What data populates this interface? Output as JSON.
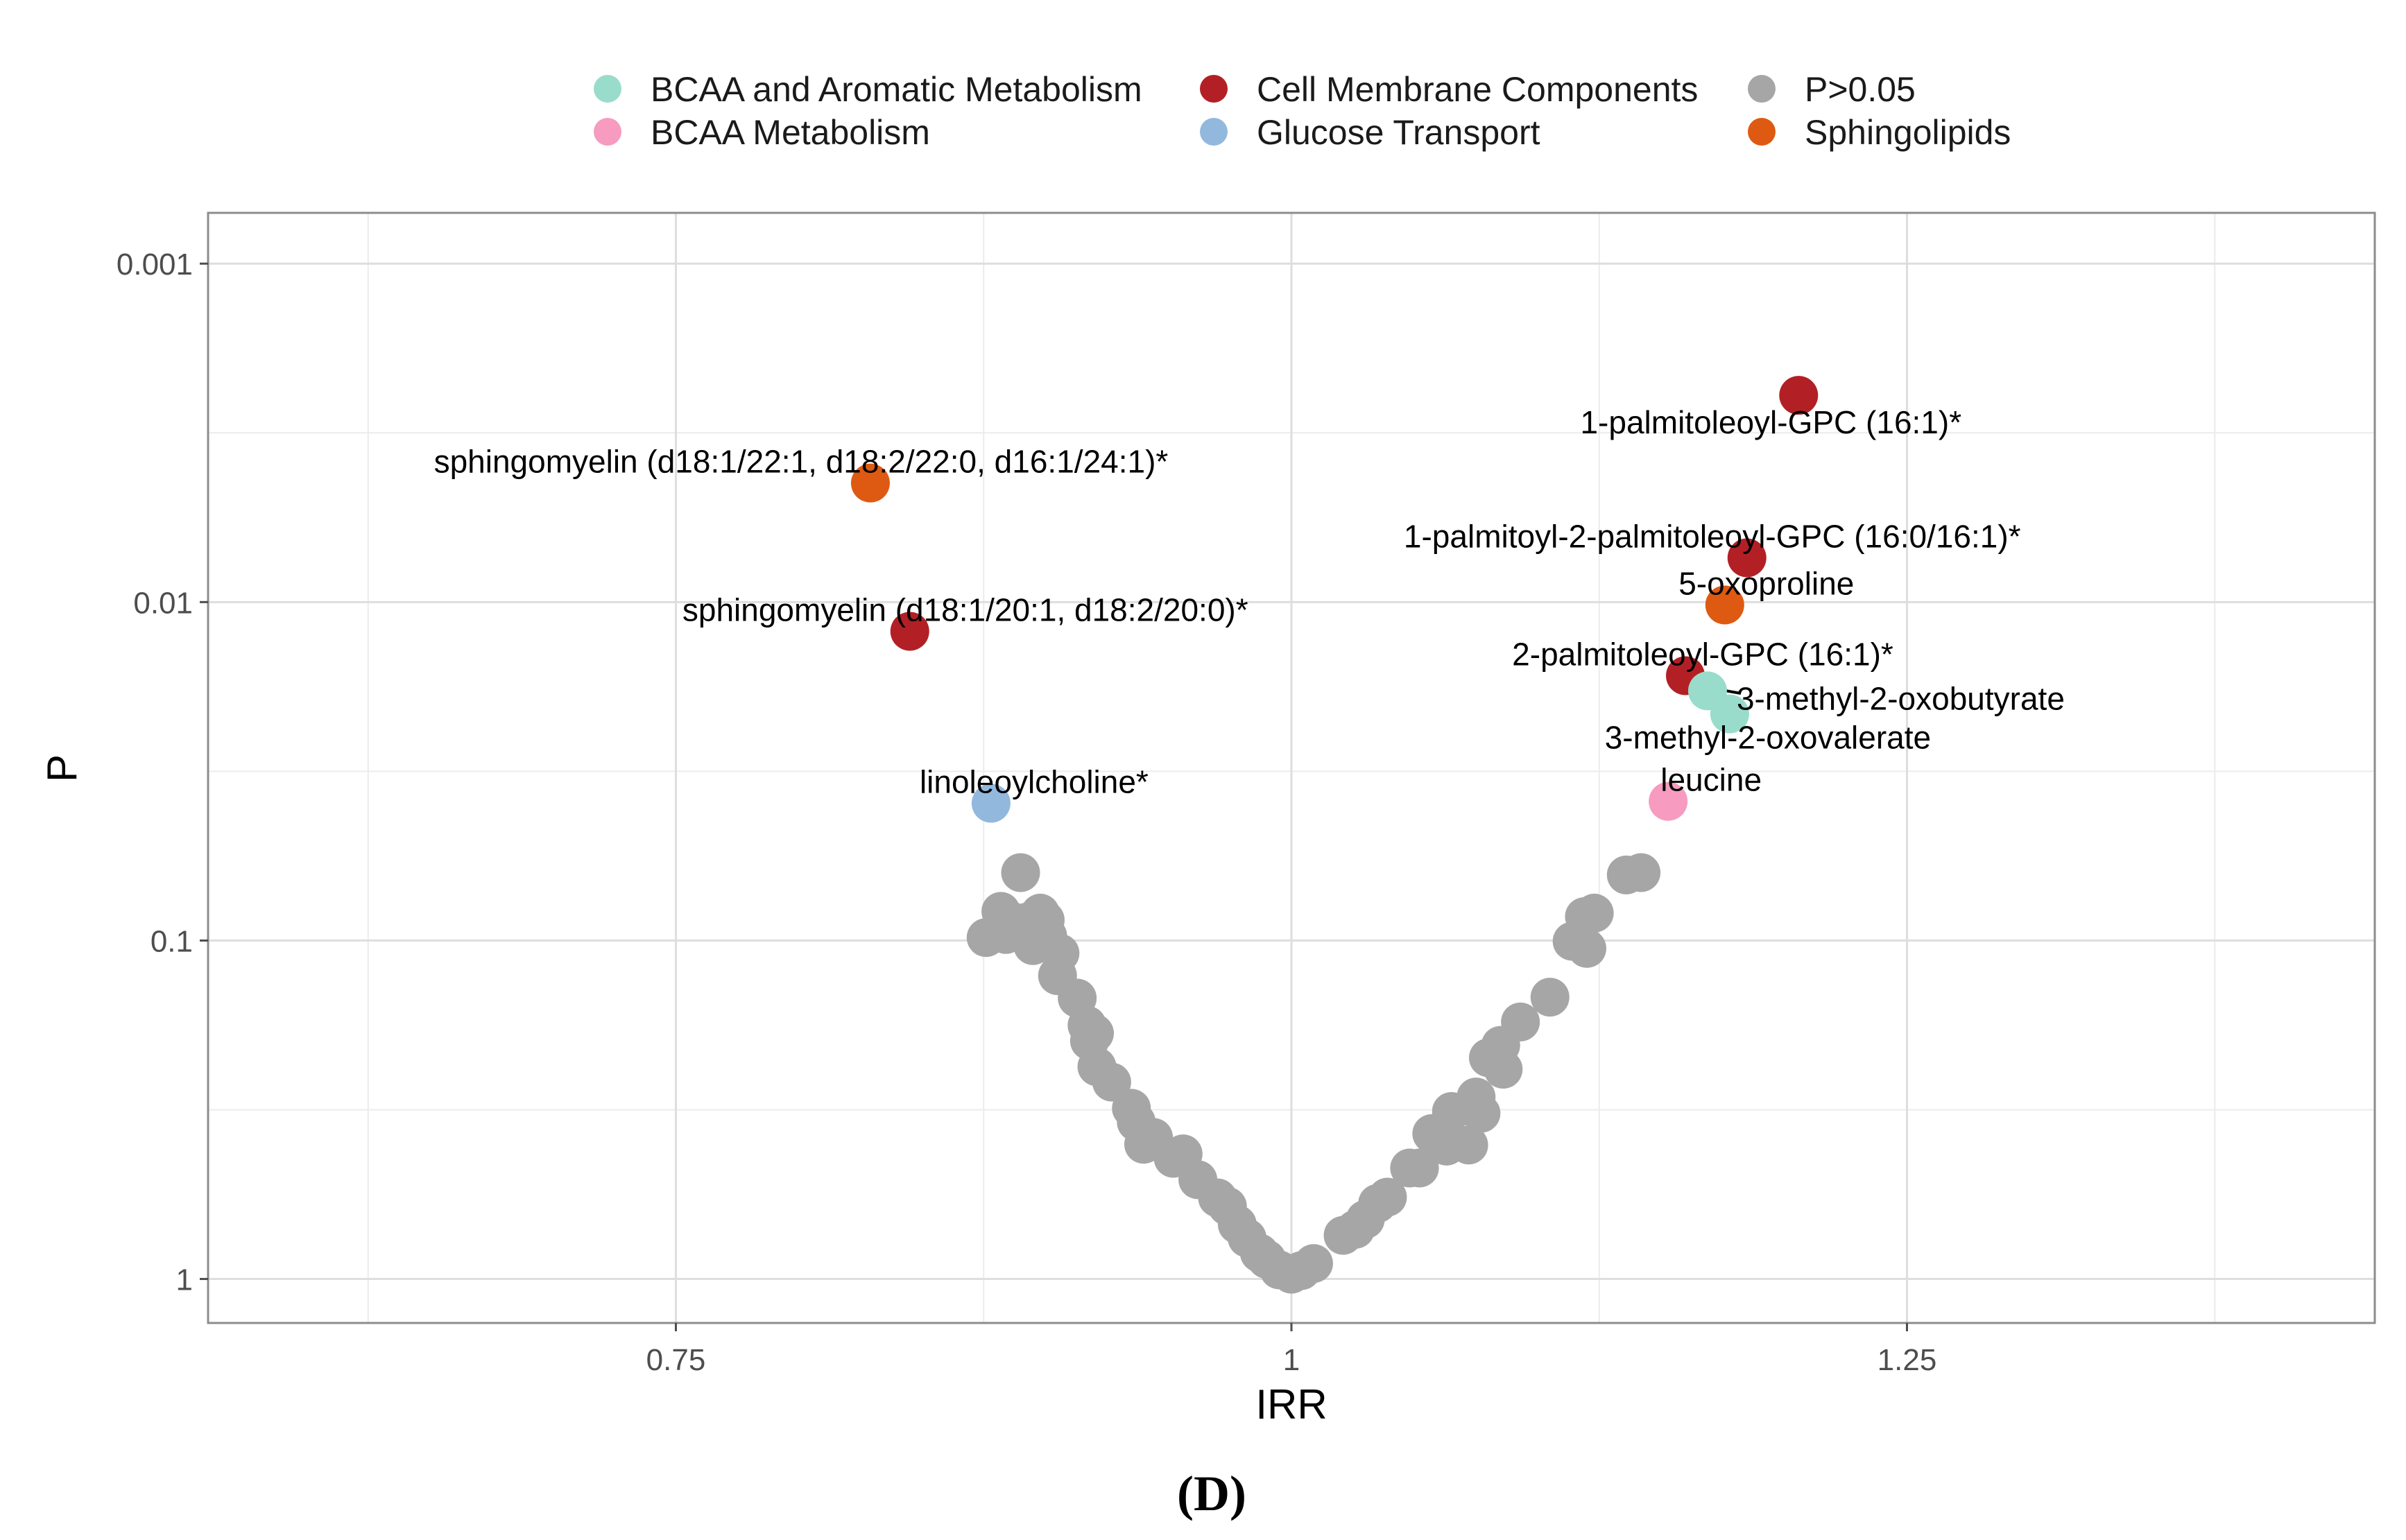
{
  "chart_data": {
    "type": "scatter",
    "title": "",
    "caption": "(D)",
    "xlabel": "IRR",
    "ylabel": "P",
    "x_scale": "linear",
    "y_scale": "log10-reversed",
    "xlim": [
      0.56,
      1.44
    ],
    "ylim_log10": [
      -3.15,
      0.13
    ],
    "x_ticks": [
      {
        "value": 0.75,
        "label": "0.75"
      },
      {
        "value": 1.0,
        "label": "1"
      },
      {
        "value": 1.25,
        "label": "1.25"
      }
    ],
    "y_ticks": [
      {
        "value": 0.001,
        "label": "0.001"
      },
      {
        "value": 0.01,
        "label": "0.01"
      },
      {
        "value": 0.1,
        "label": "0.1"
      },
      {
        "value": 1,
        "label": "1"
      }
    ],
    "grid": true,
    "legend_position": "top",
    "legend": [
      {
        "name": "BCAA and Aromatic Metabolism",
        "color": "#99dccb"
      },
      {
        "name": "BCAA Metabolism",
        "color": "#f79bc0"
      },
      {
        "name": "Cell Membrane Components",
        "color": "#b22025"
      },
      {
        "name": "Glucose Transport",
        "color": "#93b8de"
      },
      {
        "name": "P>0.05",
        "color": "#a6a6a6"
      },
      {
        "name": "Sphingolipids",
        "color": "#de5a12"
      }
    ],
    "points": [
      {
        "label": "1-palmitoleoyl-GPC (16:1)*",
        "irr": 1.206,
        "p": 0.00245,
        "group": "Cell Membrane Components"
      },
      {
        "label": "sphingomyelin (d18:1/22:1, d18:2/22:0, d16:1/24:1)*",
        "irr": 0.829,
        "p": 0.00445,
        "group": "Sphingolipids"
      },
      {
        "label": "1-palmitoyl-2-palmitoleoyl-GPC (16:0/16:1)*",
        "irr": 1.185,
        "p": 0.0074,
        "group": "Cell Membrane Components"
      },
      {
        "label": "5-oxoproline",
        "irr": 1.176,
        "p": 0.0102,
        "group": "Sphingolipids"
      },
      {
        "label": "sphingomyelin (d18:1/20:1, d18:2/20:0)*",
        "irr": 0.845,
        "p": 0.0122,
        "group": "Cell Membrane Components"
      },
      {
        "label": "2-palmitoleoyl-GPC (16:1)*",
        "irr": 1.16,
        "p": 0.0165,
        "group": "Cell Membrane Components"
      },
      {
        "label": "3-methyl-2-oxobutyrate",
        "irr": 1.169,
        "p": 0.0183,
        "group": "BCAA and Aromatic Metabolism"
      },
      {
        "label": "3-methyl-2-oxovalerate",
        "irr": 1.178,
        "p": 0.0214,
        "group": "BCAA and Aromatic Metabolism"
      },
      {
        "label": "leucine",
        "irr": 1.153,
        "p": 0.0388,
        "group": "BCAA Metabolism"
      },
      {
        "label": "linoleoylcholine*",
        "irr": 0.878,
        "p": 0.0393,
        "group": "Glucose Transport"
      },
      {
        "irr": 0.89,
        "p": 0.063,
        "group": "P>0.05"
      },
      {
        "irr": 0.882,
        "p": 0.082,
        "group": "P>0.05"
      },
      {
        "irr": 0.887,
        "p": 0.088,
        "group": "P>0.05"
      },
      {
        "irr": 0.876,
        "p": 0.098,
        "group": "P>0.05"
      },
      {
        "irr": 0.884,
        "p": 0.096,
        "group": "P>0.05"
      },
      {
        "irr": 0.893,
        "p": 0.088,
        "group": "P>0.05"
      },
      {
        "irr": 0.898,
        "p": 0.083,
        "group": "P>0.05"
      },
      {
        "irr": 0.9,
        "p": 0.087,
        "group": "P>0.05"
      },
      {
        "irr": 0.897,
        "p": 0.093,
        "group": "P>0.05"
      },
      {
        "irr": 0.895,
        "p": 0.1035,
        "group": "P>0.05"
      },
      {
        "irr": 0.901,
        "p": 0.097,
        "group": "P>0.05"
      },
      {
        "irr": 0.906,
        "p": 0.109,
        "group": "P>0.05"
      },
      {
        "irr": 0.905,
        "p": 0.127,
        "group": "P>0.05"
      },
      {
        "irr": 0.913,
        "p": 0.148,
        "group": "P>0.05"
      },
      {
        "irr": 0.917,
        "p": 0.178,
        "group": "P>0.05"
      },
      {
        "irr": 0.918,
        "p": 0.198,
        "group": "P>0.05"
      },
      {
        "irr": 0.92,
        "p": 0.188,
        "group": "P>0.05"
      },
      {
        "irr": 0.921,
        "p": 0.236,
        "group": "P>0.05"
      },
      {
        "irr": 0.927,
        "p": 0.262,
        "group": "P>0.05"
      },
      {
        "irr": 0.935,
        "p": 0.313,
        "group": "P>0.05"
      },
      {
        "irr": 0.937,
        "p": 0.344,
        "group": "P>0.05"
      },
      {
        "irr": 0.94,
        "p": 0.4,
        "group": "P>0.05"
      },
      {
        "irr": 0.944,
        "p": 0.382,
        "group": "P>0.05"
      },
      {
        "irr": 0.952,
        "p": 0.44,
        "group": "P>0.05"
      },
      {
        "irr": 0.956,
        "p": 0.427,
        "group": "P>0.05"
      },
      {
        "irr": 0.962,
        "p": 0.509,
        "group": "P>0.05"
      },
      {
        "irr": 0.97,
        "p": 0.576,
        "group": "P>0.05"
      },
      {
        "irr": 0.974,
        "p": 0.61,
        "group": "P>0.05"
      },
      {
        "irr": 0.978,
        "p": 0.69,
        "group": "P>0.05"
      },
      {
        "irr": 0.982,
        "p": 0.757,
        "group": "P>0.05"
      },
      {
        "irr": 0.987,
        "p": 0.838,
        "group": "P>0.05"
      },
      {
        "irr": 0.99,
        "p": 0.875,
        "group": "P>0.05"
      },
      {
        "irr": 0.995,
        "p": 0.94,
        "group": "P>0.05"
      },
      {
        "irr": 1.0,
        "p": 0.968,
        "group": "P>0.05"
      },
      {
        "irr": 1.004,
        "p": 0.945,
        "group": "P>0.05"
      },
      {
        "irr": 1.009,
        "p": 0.9,
        "group": "P>0.05"
      },
      {
        "irr": 1.021,
        "p": 0.743,
        "group": "P>0.05"
      },
      {
        "irr": 1.026,
        "p": 0.713,
        "group": "P>0.05"
      },
      {
        "irr": 1.03,
        "p": 0.667,
        "group": "P>0.05"
      },
      {
        "irr": 1.035,
        "p": 0.598,
        "group": "P>0.05"
      },
      {
        "irr": 1.039,
        "p": 0.573,
        "group": "P>0.05"
      },
      {
        "irr": 1.048,
        "p": 0.47,
        "group": "P>0.05"
      },
      {
        "irr": 1.052,
        "p": 0.47,
        "group": "P>0.05"
      },
      {
        "irr": 1.057,
        "p": 0.372,
        "group": "P>0.05"
      },
      {
        "irr": 1.063,
        "p": 0.405,
        "group": "P>0.05"
      },
      {
        "irr": 1.065,
        "p": 0.32,
        "group": "P>0.05"
      },
      {
        "irr": 1.072,
        "p": 0.402,
        "group": "P>0.05"
      },
      {
        "irr": 1.075,
        "p": 0.29,
        "group": "P>0.05"
      },
      {
        "irr": 1.077,
        "p": 0.324,
        "group": "P>0.05"
      },
      {
        "irr": 1.08,
        "p": 0.222,
        "group": "P>0.05"
      },
      {
        "irr": 1.085,
        "p": 0.204,
        "group": "P>0.05"
      },
      {
        "irr": 1.086,
        "p": 0.24,
        "group": "P>0.05"
      },
      {
        "irr": 1.093,
        "p": 0.174,
        "group": "P>0.05"
      },
      {
        "irr": 1.105,
        "p": 0.147,
        "group": "P>0.05"
      },
      {
        "irr": 1.114,
        "p": 0.1005,
        "group": "P>0.05"
      },
      {
        "irr": 1.12,
        "p": 0.1055,
        "group": "P>0.05"
      },
      {
        "irr": 1.119,
        "p": 0.085,
        "group": "P>0.05"
      },
      {
        "irr": 1.123,
        "p": 0.083,
        "group": "P>0.05"
      },
      {
        "irr": 1.136,
        "p": 0.064,
        "group": "P>0.05"
      },
      {
        "irr": 1.142,
        "p": 0.063,
        "group": "P>0.05"
      }
    ]
  }
}
